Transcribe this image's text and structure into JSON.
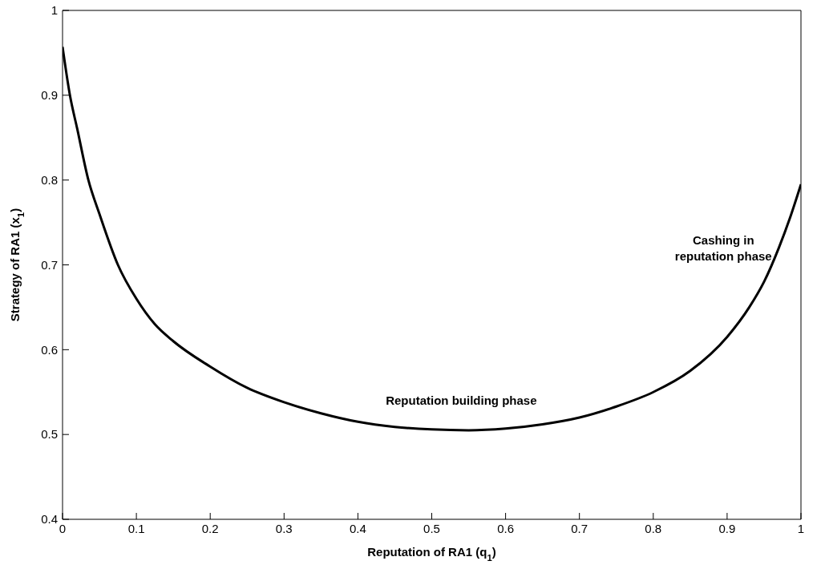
{
  "chart_data": {
    "type": "line",
    "xlabel": "Reputation of RA1 (q$_{1}$)",
    "ylabel": "Strategy of RA1 (x$_{1}$)",
    "x": [
      0,
      0.01,
      0.02,
      0.035,
      0.05,
      0.075,
      0.1,
      0.125,
      0.15,
      0.2,
      0.25,
      0.3,
      0.35,
      0.4,
      0.45,
      0.5,
      0.55,
      0.6,
      0.65,
      0.7,
      0.75,
      0.8,
      0.85,
      0.9,
      0.93,
      0.95,
      0.97,
      0.985,
      1
    ],
    "series": [
      {
        "color": "#000000",
        "values": [
          0.957,
          0.9,
          0.86,
          0.8,
          0.76,
          0.7,
          0.66,
          0.63,
          0.61,
          0.58,
          0.555,
          0.538,
          0.525,
          0.515,
          0.509,
          0.506,
          0.505,
          0.507,
          0.512,
          0.52,
          0.533,
          0.55,
          0.575,
          0.615,
          0.65,
          0.68,
          0.72,
          0.755,
          0.795
        ]
      }
    ],
    "xlim": [
      0,
      1
    ],
    "xticks": [
      0,
      0.1,
      0.2,
      0.3,
      0.4,
      0.5,
      0.6,
      0.7,
      0.8,
      0.9,
      1
    ],
    "ylim": [
      0.4,
      1
    ],
    "yticks": [
      0.4,
      0.5,
      0.6,
      0.7,
      0.8,
      0.9,
      1
    ],
    "annotations": [
      "Reputation building phase",
      "Cashing in reputation phase"
    ]
  }
}
